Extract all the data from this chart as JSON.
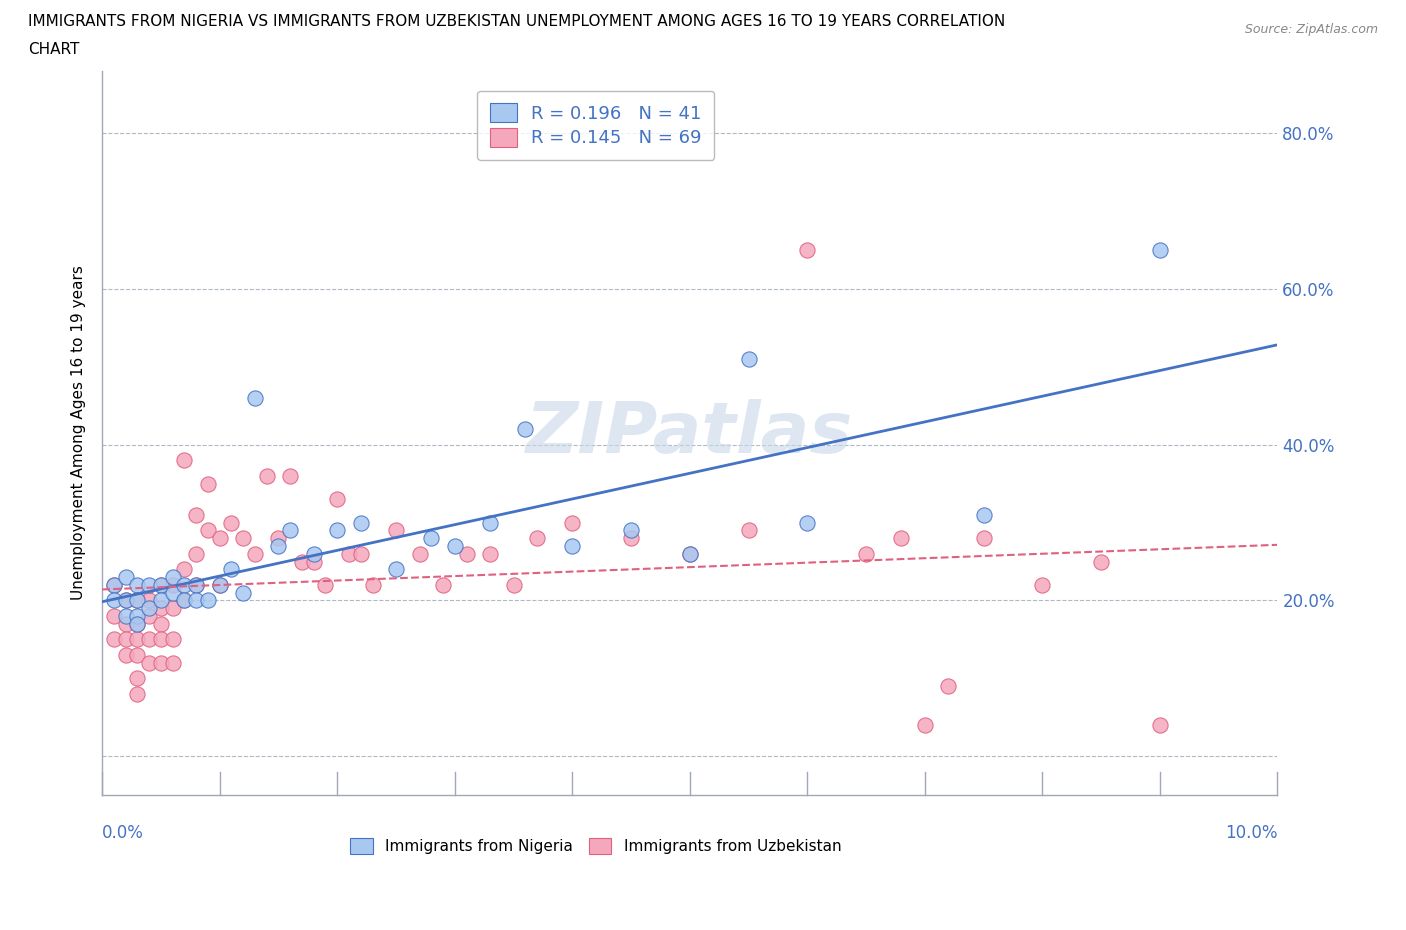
{
  "title_line1": "IMMIGRANTS FROM NIGERIA VS IMMIGRANTS FROM UZBEKISTAN UNEMPLOYMENT AMONG AGES 16 TO 19 YEARS CORRELATION",
  "title_line2": "CHART",
  "source": "Source: ZipAtlas.com",
  "ylabel": "Unemployment Among Ages 16 to 19 years",
  "y_ticks": [
    0.0,
    0.2,
    0.4,
    0.6,
    0.8
  ],
  "y_tick_labels_right": [
    "",
    "20.0%",
    "40.0%",
    "60.0%",
    "80.0%"
  ],
  "x_range": [
    0.0,
    0.1
  ],
  "y_range": [
    -0.05,
    0.88
  ],
  "nigeria_color": "#a8c8f0",
  "uzbekistan_color": "#f5a8bc",
  "nigeria_line_color": "#4472c4",
  "uzbekistan_line_color": "#e06080",
  "nigeria_R": 0.196,
  "nigeria_N": 41,
  "uzbekistan_R": 0.145,
  "uzbekistan_N": 69,
  "legend_text_color": "#4472c4",
  "watermark_color": "#c8d8e8",
  "nigeria_x": [
    0.001,
    0.001,
    0.002,
    0.002,
    0.002,
    0.003,
    0.003,
    0.003,
    0.003,
    0.004,
    0.004,
    0.005,
    0.005,
    0.006,
    0.006,
    0.007,
    0.007,
    0.008,
    0.008,
    0.009,
    0.01,
    0.011,
    0.012,
    0.013,
    0.015,
    0.016,
    0.018,
    0.02,
    0.022,
    0.025,
    0.028,
    0.03,
    0.033,
    0.036,
    0.04,
    0.045,
    0.05,
    0.055,
    0.06,
    0.075,
    0.09
  ],
  "nigeria_y": [
    0.22,
    0.2,
    0.23,
    0.2,
    0.18,
    0.22,
    0.2,
    0.18,
    0.17,
    0.22,
    0.19,
    0.22,
    0.2,
    0.23,
    0.21,
    0.22,
    0.2,
    0.22,
    0.2,
    0.2,
    0.22,
    0.24,
    0.21,
    0.46,
    0.27,
    0.29,
    0.26,
    0.29,
    0.3,
    0.24,
    0.28,
    0.27,
    0.3,
    0.42,
    0.27,
    0.29,
    0.26,
    0.51,
    0.3,
    0.31,
    0.65
  ],
  "uzbekistan_x": [
    0.001,
    0.001,
    0.001,
    0.002,
    0.002,
    0.002,
    0.002,
    0.003,
    0.003,
    0.003,
    0.003,
    0.003,
    0.003,
    0.004,
    0.004,
    0.004,
    0.004,
    0.005,
    0.005,
    0.005,
    0.005,
    0.005,
    0.006,
    0.006,
    0.006,
    0.006,
    0.007,
    0.007,
    0.007,
    0.008,
    0.008,
    0.008,
    0.009,
    0.009,
    0.01,
    0.01,
    0.011,
    0.012,
    0.013,
    0.014,
    0.015,
    0.016,
    0.017,
    0.018,
    0.019,
    0.02,
    0.021,
    0.022,
    0.023,
    0.025,
    0.027,
    0.029,
    0.031,
    0.033,
    0.035,
    0.037,
    0.04,
    0.045,
    0.05,
    0.055,
    0.06,
    0.065,
    0.068,
    0.07,
    0.072,
    0.075,
    0.08,
    0.085,
    0.09
  ],
  "uzbekistan_y": [
    0.22,
    0.18,
    0.15,
    0.2,
    0.17,
    0.15,
    0.13,
    0.2,
    0.17,
    0.15,
    0.13,
    0.1,
    0.08,
    0.2,
    0.18,
    0.15,
    0.12,
    0.22,
    0.19,
    0.17,
    0.15,
    0.12,
    0.22,
    0.19,
    0.15,
    0.12,
    0.38,
    0.24,
    0.2,
    0.31,
    0.26,
    0.22,
    0.35,
    0.29,
    0.28,
    0.22,
    0.3,
    0.28,
    0.26,
    0.36,
    0.28,
    0.36,
    0.25,
    0.25,
    0.22,
    0.33,
    0.26,
    0.26,
    0.22,
    0.29,
    0.26,
    0.22,
    0.26,
    0.26,
    0.22,
    0.28,
    0.3,
    0.28,
    0.26,
    0.29,
    0.65,
    0.26,
    0.28,
    0.04,
    0.09,
    0.28,
    0.22,
    0.25,
    0.04
  ]
}
